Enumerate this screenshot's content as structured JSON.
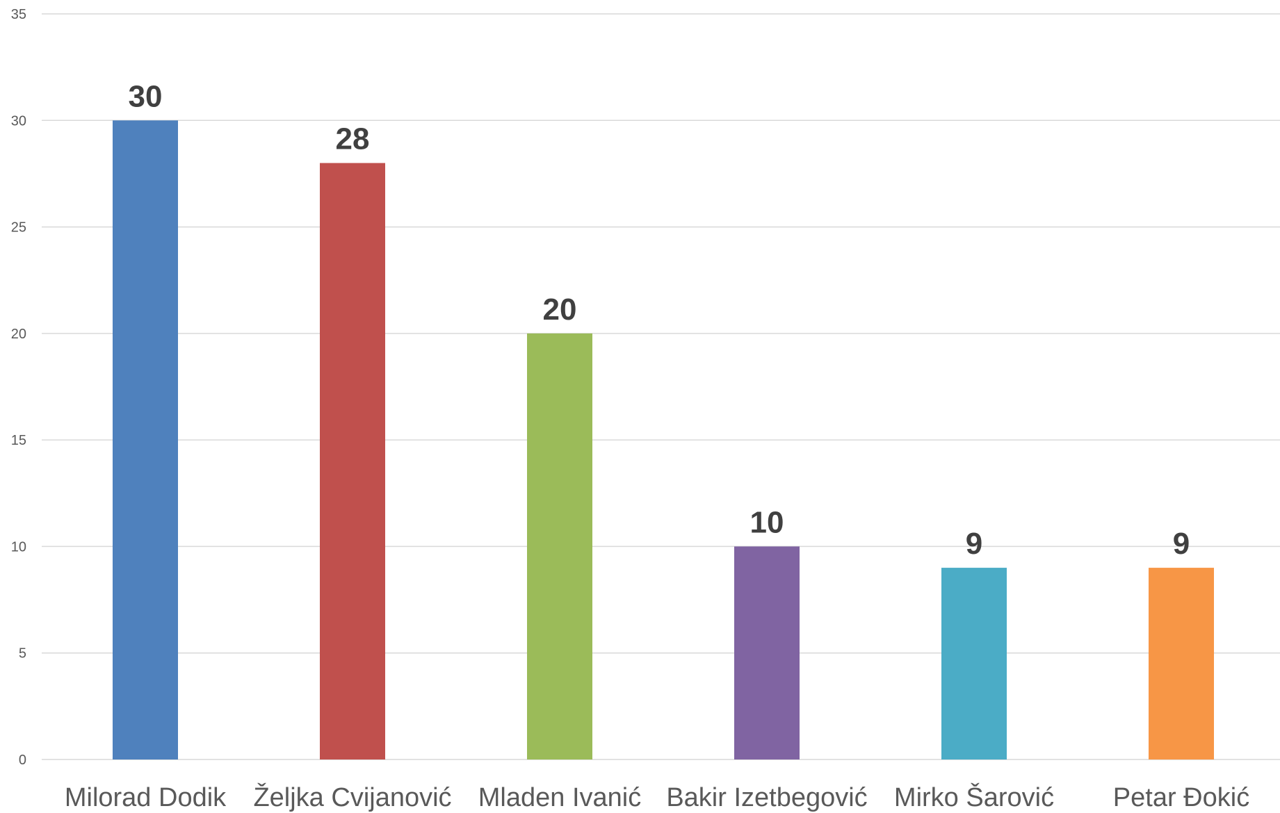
{
  "chart_data": {
    "type": "bar",
    "title": "",
    "xlabel": "",
    "ylabel": "",
    "categories": [
      "Milorad Dodik",
      "Željka Cvijanović",
      "Mladen Ivanić",
      "Bakir Izetbegović",
      "Mirko Šarović",
      "Petar Đokić"
    ],
    "values": [
      30,
      28,
      20,
      10,
      9,
      9
    ],
    "colors": [
      "#4f81bd",
      "#c0504d",
      "#9bbb59",
      "#8064a2",
      "#4bacc6",
      "#f79646"
    ],
    "ylim": [
      0,
      35
    ],
    "yticks": [
      "0",
      "5",
      "10",
      "15",
      "20",
      "25",
      "30",
      "35"
    ],
    "grid": true,
    "legend": "none",
    "data_labels": true
  }
}
